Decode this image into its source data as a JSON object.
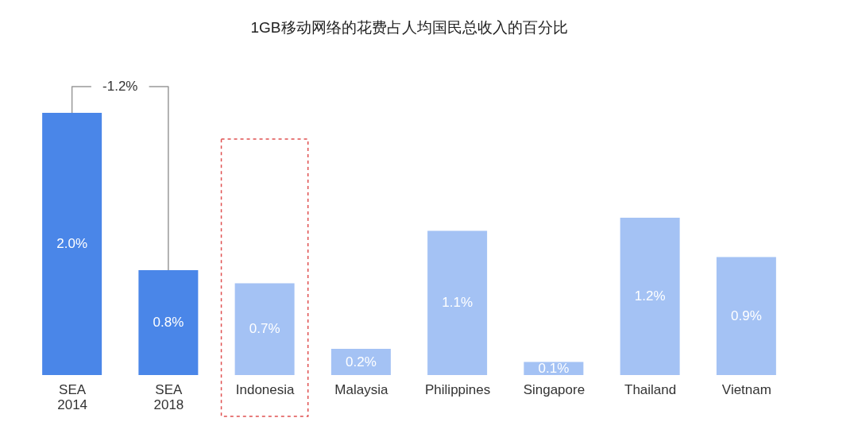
{
  "chart_data": {
    "type": "bar",
    "title": "1GB移动网络的花费占人均国民总收入的百分比",
    "categories": [
      "SEA 2014",
      "SEA 2018",
      "Indonesia",
      "Malaysia",
      "Philippines",
      "Singapore",
      "Thailand",
      "Vietnam"
    ],
    "values": [
      2.0,
      0.8,
      0.7,
      0.2,
      1.1,
      0.1,
      1.2,
      0.9
    ],
    "colors": [
      "#4a86e8",
      "#4a86e8",
      "#a4c2f4",
      "#a4c2f4",
      "#a4c2f4",
      "#a4c2f4",
      "#a4c2f4",
      "#a4c2f4"
    ],
    "value_labels": [
      "2.0%",
      "0.8%",
      "0.7%",
      "0.2%",
      "1.1%",
      "0.1%",
      "1.2%",
      "0.9%"
    ],
    "annotations": [
      "-1.2%"
    ],
    "grid": false
  }
}
